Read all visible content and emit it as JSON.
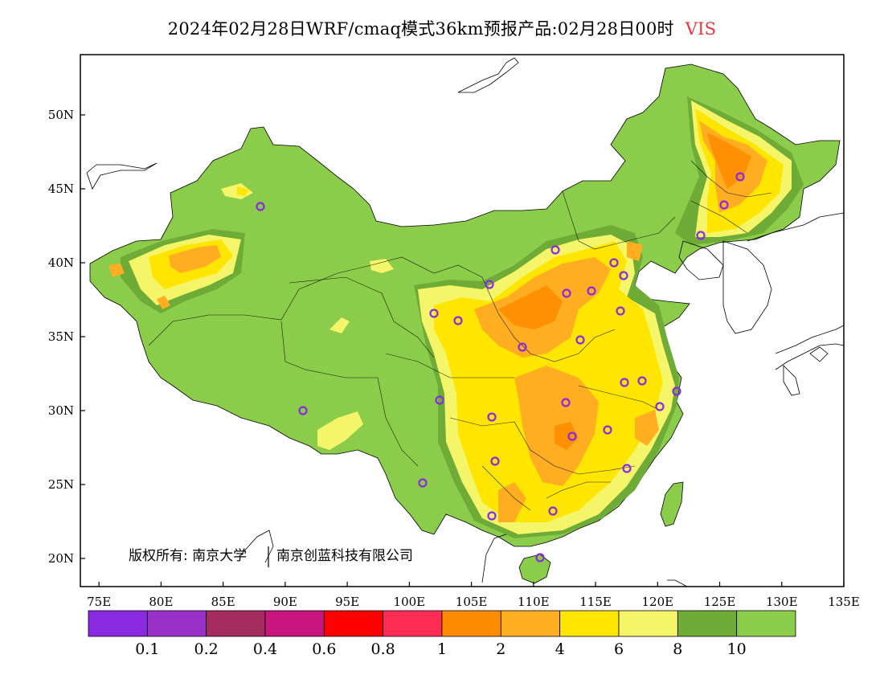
{
  "title": {
    "text": "2024年02月28日WRF/cmaq模式36km预报产品:02月28日00时",
    "variable": "VIS"
  },
  "axes": {
    "lat_labels": [
      "50N",
      "45N",
      "40N",
      "35N",
      "30N",
      "25N",
      "20N"
    ],
    "lat_values": [
      50,
      45,
      40,
      35,
      30,
      25,
      20
    ],
    "lon_labels": [
      "75E",
      "80E",
      "85E",
      "90E",
      "95E",
      "100E",
      "105E",
      "110E",
      "115E",
      "120E",
      "125E",
      "130E",
      "135E"
    ],
    "lon_values": [
      75,
      80,
      85,
      90,
      95,
      100,
      105,
      110,
      115,
      120,
      125,
      130,
      135
    ],
    "lon_range": [
      73.5,
      135
    ],
    "lat_range": [
      18,
      54
    ]
  },
  "colorbar": {
    "colors": [
      "#8a2be2",
      "#9b30c8",
      "#a52c61",
      "#c9157e",
      "#ff0000",
      "#ff2d55",
      "#ff8c00",
      "#ffae22",
      "#ffe600",
      "#f5f56a",
      "#6fab37",
      "#8ccc4b"
    ],
    "labels": [
      "0.1",
      "0.2",
      "0.4",
      "0.6",
      "0.8",
      "1",
      "2",
      "4",
      "6",
      "8",
      "10"
    ]
  },
  "legend_colors": {
    "vis_gt10": "#8ccc4b",
    "vis_8_10": "#6fab37",
    "vis_6_8": "#f5f56a",
    "vis_4_6": "#ffe600",
    "vis_2_4": "#ffae22",
    "vis_1_2": "#ff8c00",
    "station_marker": "#8a2be2",
    "border": "#000000"
  },
  "copyright": {
    "left": "版权所有: 南京大学",
    "right": "南京创蓝科技有限公司"
  }
}
